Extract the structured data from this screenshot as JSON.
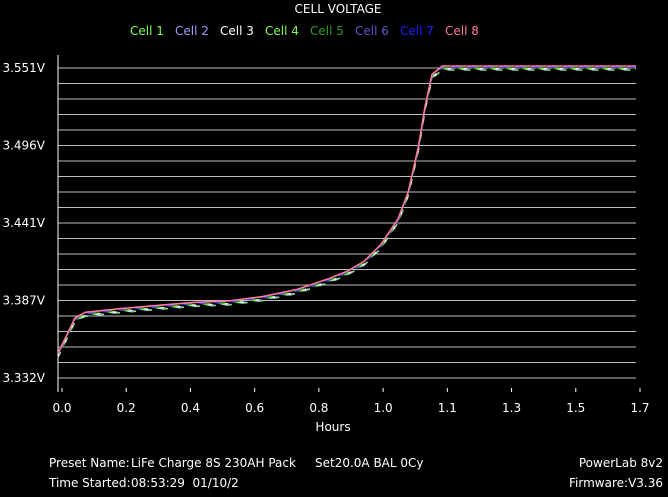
{
  "chart_data": {
    "type": "line",
    "title": "CELL VOLTAGE",
    "xlabel": "Hours",
    "ylabel": "",
    "xlim": [
      0,
      1.7
    ],
    "ylim": [
      3.332,
      3.551
    ],
    "x_ticks": [
      "0.0",
      "0.2",
      "0.4",
      "0.6",
      "0.8",
      "1.0",
      "1.1",
      "1.3",
      "1.5",
      "1.7"
    ],
    "y_ticks": [
      "3.332V",
      "3.387V",
      "3.441V",
      "3.496V",
      "3.551V"
    ],
    "grid": true,
    "legend_position": "top",
    "series": [
      {
        "name": "Cell 1",
        "color": "#7CFC5A"
      },
      {
        "name": "Cell 2",
        "color": "#9A9AFF"
      },
      {
        "name": "Cell 3",
        "color": "#FFFFFF"
      },
      {
        "name": "Cell 4",
        "color": "#7CFC5A"
      },
      {
        "name": "Cell 5",
        "color": "#2E9E2E"
      },
      {
        "name": "Cell 6",
        "color": "#5A5ACD"
      },
      {
        "name": "Cell 7",
        "color": "#2020FF"
      },
      {
        "name": "Cell 8",
        "color": "#FF7A9A"
      }
    ],
    "x": [
      0.0,
      0.02,
      0.05,
      0.08,
      0.12,
      0.2,
      0.3,
      0.4,
      0.5,
      0.6,
      0.7,
      0.8,
      0.85,
      0.9,
      0.95,
      1.0,
      1.03,
      1.06,
      1.08,
      1.1,
      1.13,
      1.2,
      1.3,
      1.4,
      1.5,
      1.6,
      1.7
    ],
    "y": [
      3.348,
      3.358,
      3.373,
      3.377,
      3.378,
      3.38,
      3.382,
      3.384,
      3.385,
      3.388,
      3.393,
      3.401,
      3.406,
      3.413,
      3.425,
      3.443,
      3.462,
      3.494,
      3.523,
      3.545,
      3.551,
      3.551,
      3.551,
      3.551,
      3.551,
      3.551,
      3.551
    ]
  },
  "footer": {
    "preset_label": "Preset Name:",
    "preset_value": "LiFe Charge 8S 230AH Pack",
    "setting": "Set20.0A BAL 0Cy",
    "time_label": "Time Started:",
    "time_value": "08:53:29  01/10/2",
    "device": "PowerLab 8v2",
    "firmware_label": "Firmware:",
    "firmware_value": "V3.36"
  }
}
